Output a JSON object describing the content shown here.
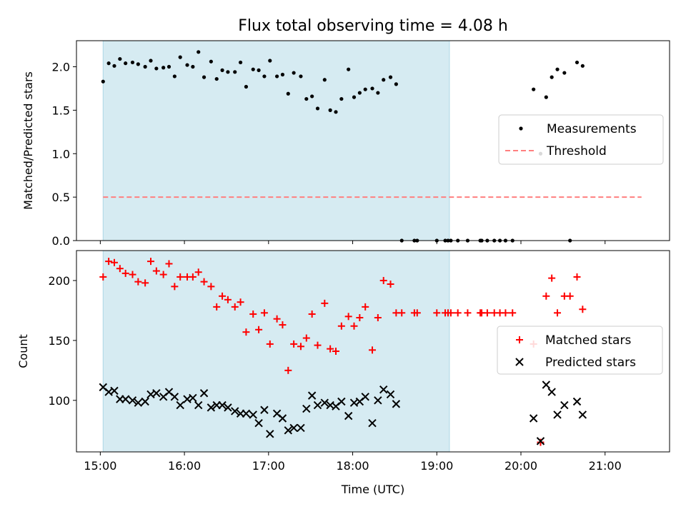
{
  "figure": {
    "title": "Flux total observing time = 4.08 h"
  },
  "colors": {
    "shade": "#add8e6",
    "measurement": "#000000",
    "threshold": "#ff7f7f",
    "matched": "#ff0000",
    "predicted": "#000000"
  },
  "chart_data": [
    {
      "type": "scatter",
      "xlabel": "",
      "ylabel": "Matched/Predicted stars",
      "xlim": [
        "14:43",
        "21:46"
      ],
      "ylim": [
        0,
        2.3
      ],
      "x_ticks": [
        "15:00",
        "16:00",
        "17:00",
        "18:00",
        "19:00",
        "20:00",
        "21:00"
      ],
      "y_ticks": [
        "0.0",
        "0.5",
        "1.0",
        "1.5",
        "2.0"
      ],
      "shaded_span": [
        "15:02",
        "19:09"
      ],
      "legend": {
        "placement": "center-right",
        "entries": [
          "Measurements",
          "Threshold"
        ]
      },
      "threshold": {
        "name": "Threshold",
        "value": 0.5,
        "x_range": [
          "15:02",
          "21:26"
        ]
      },
      "series": [
        {
          "name": "Measurements",
          "points": [
            [
              "15:02",
              1.83
            ],
            [
              "15:06",
              2.04
            ],
            [
              "15:10",
              2.01
            ],
            [
              "15:14",
              2.09
            ],
            [
              "15:18",
              2.04
            ],
            [
              "15:23",
              2.05
            ],
            [
              "15:27",
              2.03
            ],
            [
              "15:32",
              2.0
            ],
            [
              "15:36",
              2.07
            ],
            [
              "15:40",
              1.98
            ],
            [
              "15:45",
              1.99
            ],
            [
              "15:49",
              2.0
            ],
            [
              "15:53",
              1.89
            ],
            [
              "15:57",
              2.11
            ],
            [
              "16:02",
              2.02
            ],
            [
              "16:06",
              2.0
            ],
            [
              "16:10",
              2.17
            ],
            [
              "16:14",
              1.88
            ],
            [
              "16:19",
              2.06
            ],
            [
              "16:23",
              1.86
            ],
            [
              "16:27",
              1.96
            ],
            [
              "16:31",
              1.94
            ],
            [
              "16:36",
              1.94
            ],
            [
              "16:40",
              2.05
            ],
            [
              "16:44",
              1.77
            ],
            [
              "16:49",
              1.97
            ],
            [
              "16:53",
              1.96
            ],
            [
              "16:57",
              1.89
            ],
            [
              "17:01",
              2.07
            ],
            [
              "17:06",
              1.89
            ],
            [
              "17:10",
              1.91
            ],
            [
              "17:14",
              1.69
            ],
            [
              "17:18",
              1.93
            ],
            [
              "17:23",
              1.89
            ],
            [
              "17:27",
              1.63
            ],
            [
              "17:31",
              1.66
            ],
            [
              "17:35",
              1.52
            ],
            [
              "17:40",
              1.85
            ],
            [
              "17:44",
              1.5
            ],
            [
              "17:48",
              1.48
            ],
            [
              "17:52",
              1.63
            ],
            [
              "17:57",
              1.97
            ],
            [
              "18:01",
              1.65
            ],
            [
              "18:05",
              1.7
            ],
            [
              "18:09",
              1.74
            ],
            [
              "18:14",
              1.75
            ],
            [
              "18:18",
              1.7
            ],
            [
              "18:22",
              1.85
            ],
            [
              "18:27",
              1.88
            ],
            [
              "18:31",
              1.8
            ],
            [
              "18:35",
              0.0
            ],
            [
              "18:44",
              0.0
            ],
            [
              "18:46",
              0.0
            ],
            [
              "19:00",
              0.0
            ],
            [
              "19:06",
              0.0
            ],
            [
              "19:08",
              0.0
            ],
            [
              "19:10",
              0.0
            ],
            [
              "19:15",
              0.0
            ],
            [
              "19:22",
              0.0
            ],
            [
              "19:31",
              0.0
            ],
            [
              "19:32",
              0.0
            ],
            [
              "19:36",
              0.0
            ],
            [
              "19:41",
              0.0
            ],
            [
              "19:45",
              0.0
            ],
            [
              "19:49",
              0.0
            ],
            [
              "19:54",
              0.0
            ],
            [
              "20:09",
              1.74
            ],
            [
              "20:14",
              1.0
            ],
            [
              "20:18",
              1.65
            ],
            [
              "20:22",
              1.88
            ],
            [
              "20:26",
              1.97
            ],
            [
              "20:31",
              1.93
            ],
            [
              "20:35",
              0.0
            ],
            [
              "20:40",
              2.05
            ],
            [
              "20:44",
              2.01
            ]
          ]
        }
      ]
    },
    {
      "type": "scatter",
      "xlabel": "Time (UTC)",
      "ylabel": "Count",
      "xlim": [
        "14:43",
        "21:46"
      ],
      "ylim": [
        57,
        225
      ],
      "x_ticks": [
        "15:00",
        "16:00",
        "17:00",
        "18:00",
        "19:00",
        "20:00",
        "21:00"
      ],
      "y_ticks": [
        "100",
        "150",
        "200"
      ],
      "shaded_span": [
        "15:02",
        "19:09"
      ],
      "legend": {
        "placement": "center-right",
        "entries": [
          "Matched stars",
          "Predicted stars"
        ]
      },
      "series": [
        {
          "name": "Matched stars",
          "marker": "plus",
          "points": [
            [
              "15:02",
              203
            ],
            [
              "15:06",
              216
            ],
            [
              "15:10",
              215
            ],
            [
              "15:14",
              210
            ],
            [
              "15:18",
              206
            ],
            [
              "15:23",
              205
            ],
            [
              "15:27",
              199
            ],
            [
              "15:32",
              198
            ],
            [
              "15:36",
              216
            ],
            [
              "15:40",
              208
            ],
            [
              "15:45",
              205
            ],
            [
              "15:49",
              214
            ],
            [
              "15:53",
              195
            ],
            [
              "15:57",
              203
            ],
            [
              "16:02",
              203
            ],
            [
              "16:06",
              203
            ],
            [
              "16:10",
              207
            ],
            [
              "16:14",
              199
            ],
            [
              "16:19",
              195
            ],
            [
              "16:23",
              178
            ],
            [
              "16:27",
              187
            ],
            [
              "16:31",
              184
            ],
            [
              "16:36",
              178
            ],
            [
              "16:40",
              182
            ],
            [
              "16:44",
              157
            ],
            [
              "16:49",
              172
            ],
            [
              "16:53",
              159
            ],
            [
              "16:57",
              173
            ],
            [
              "17:01",
              147
            ],
            [
              "17:06",
              168
            ],
            [
              "17:10",
              163
            ],
            [
              "17:14",
              125
            ],
            [
              "17:18",
              147
            ],
            [
              "17:23",
              145
            ],
            [
              "17:27",
              152
            ],
            [
              "17:31",
              172
            ],
            [
              "17:35",
              146
            ],
            [
              "17:40",
              181
            ],
            [
              "17:44",
              143
            ],
            [
              "17:48",
              141
            ],
            [
              "17:52",
              162
            ],
            [
              "17:57",
              170
            ],
            [
              "18:01",
              162
            ],
            [
              "18:05",
              169
            ],
            [
              "18:09",
              178
            ],
            [
              "18:14",
              142
            ],
            [
              "18:18",
              169
            ],
            [
              "18:22",
              200
            ],
            [
              "18:27",
              197
            ],
            [
              "18:31",
              173
            ],
            [
              "18:35",
              173
            ],
            [
              "18:44",
              173
            ],
            [
              "18:46",
              173
            ],
            [
              "19:00",
              173
            ],
            [
              "19:06",
              173
            ],
            [
              "19:08",
              173
            ],
            [
              "19:10",
              173
            ],
            [
              "19:15",
              173
            ],
            [
              "19:22",
              173
            ],
            [
              "19:31",
              173
            ],
            [
              "19:32",
              173
            ],
            [
              "19:36",
              173
            ],
            [
              "19:41",
              173
            ],
            [
              "19:45",
              173
            ],
            [
              "19:49",
              173
            ],
            [
              "19:54",
              173
            ],
            [
              "20:09",
              147
            ],
            [
              "20:14",
              65
            ],
            [
              "20:18",
              187
            ],
            [
              "20:22",
              202
            ],
            [
              "20:26",
              173
            ],
            [
              "20:31",
              187
            ],
            [
              "20:35",
              187
            ],
            [
              "20:40",
              203
            ],
            [
              "20:44",
              176
            ]
          ]
        },
        {
          "name": "Predicted stars",
          "marker": "x",
          "points": [
            [
              "15:02",
              111
            ],
            [
              "15:06",
              107
            ],
            [
              "15:10",
              108
            ],
            [
              "15:14",
              101
            ],
            [
              "15:18",
              101
            ],
            [
              "15:23",
              100
            ],
            [
              "15:27",
              98
            ],
            [
              "15:32",
              99
            ],
            [
              "15:36",
              105
            ],
            [
              "15:40",
              106
            ],
            [
              "15:45",
              103
            ],
            [
              "15:49",
              107
            ],
            [
              "15:53",
              103
            ],
            [
              "15:57",
              96
            ],
            [
              "16:02",
              101
            ],
            [
              "16:06",
              102
            ],
            [
              "16:10",
              96
            ],
            [
              "16:14",
              106
            ],
            [
              "16:19",
              94
            ],
            [
              "16:23",
              96
            ],
            [
              "16:27",
              96
            ],
            [
              "16:31",
              94
            ],
            [
              "16:36",
              91
            ],
            [
              "16:40",
              89
            ],
            [
              "16:44",
              89
            ],
            [
              "16:49",
              88
            ],
            [
              "16:53",
              81
            ],
            [
              "16:57",
              92
            ],
            [
              "17:01",
              72
            ],
            [
              "17:06",
              89
            ],
            [
              "17:10",
              85
            ],
            [
              "17:14",
              75
            ],
            [
              "17:18",
              77
            ],
            [
              "17:23",
              77
            ],
            [
              "17:27",
              93
            ],
            [
              "17:31",
              104
            ],
            [
              "17:35",
              96
            ],
            [
              "17:40",
              98
            ],
            [
              "17:44",
              96
            ],
            [
              "17:48",
              95
            ],
            [
              "17:52",
              99
            ],
            [
              "17:57",
              87
            ],
            [
              "18:01",
              98
            ],
            [
              "18:05",
              99
            ],
            [
              "18:09",
              103
            ],
            [
              "18:14",
              81
            ],
            [
              "18:18",
              100
            ],
            [
              "18:22",
              109
            ],
            [
              "18:27",
              105
            ],
            [
              "18:31",
              97
            ],
            [
              "20:09",
              85
            ],
            [
              "20:14",
              66
            ],
            [
              "20:18",
              113
            ],
            [
              "20:22",
              107
            ],
            [
              "20:26",
              88
            ],
            [
              "20:31",
              96
            ],
            [
              "20:40",
              99
            ],
            [
              "20:44",
              88
            ]
          ]
        }
      ]
    }
  ]
}
